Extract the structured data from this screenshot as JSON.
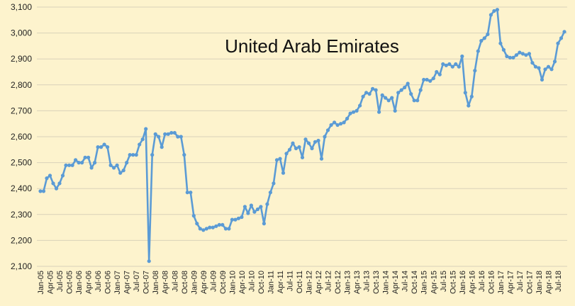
{
  "chart_data": {
    "type": "line",
    "title": "United Arab Emirates",
    "xlabel": "",
    "ylabel": "",
    "ylim": [
      2100,
      3100
    ],
    "yticks": [
      2100,
      2200,
      2300,
      2400,
      2500,
      2600,
      2700,
      2800,
      2900,
      3000,
      3100
    ],
    "ytick_labels": [
      "2,100",
      "2,200",
      "2,300",
      "2,400",
      "2,500",
      "2,600",
      "2,700",
      "2,800",
      "2,900",
      "3,000",
      "3,100"
    ],
    "grid": true,
    "legend": "none",
    "line_color": "#5b9bd5",
    "x_start": "Jan-05",
    "x_tick_labels": [
      "Jan-05",
      "Apr-05",
      "Jul-05",
      "Oct-05",
      "Jan-06",
      "Apr-06",
      "Jul-06",
      "Oct-06",
      "Jan-07",
      "Apr-07",
      "Jul-07",
      "Oct-07",
      "Jan-08",
      "Apr-08",
      "Jul-08",
      "Oct-08",
      "Jan-09",
      "Apr-09",
      "Jul-09",
      "Oct-09",
      "Jan-10",
      "Apr-10",
      "Jul-10",
      "Oct-10",
      "Jan-11",
      "Apr-11",
      "Jul-11",
      "Oct-11",
      "Jan-12",
      "Apr-12",
      "Jul-12",
      "Oct-12",
      "Jan-13",
      "Apr-13",
      "Jul-13",
      "Oct-13",
      "Jan-14",
      "Apr-14",
      "Jul-14",
      "Oct-14",
      "Jan-15",
      "Apr-15",
      "Jul-15",
      "Oct-15",
      "Jan-16",
      "Apr-16",
      "Jul-16",
      "Oct-16",
      "Jan-17",
      "Apr-17",
      "Jul-17",
      "Oct-17",
      "Jan-18",
      "Apr-18",
      "Jul-18"
    ],
    "series": [
      {
        "values": [
          2390,
          2390,
          2440,
          2450,
          2420,
          2400,
          2420,
          2450,
          2490,
          2490,
          2490,
          2510,
          2500,
          2500,
          2520,
          2520,
          2480,
          2500,
          2560,
          2560,
          2570,
          2560,
          2490,
          2480,
          2490,
          2460,
          2470,
          2500,
          2530,
          2530,
          2530,
          2570,
          2590,
          2630,
          2120,
          2530,
          2610,
          2600,
          2560,
          2610,
          2610,
          2615,
          2615,
          2600,
          2600,
          2530,
          2385,
          2385,
          2295,
          2265,
          2245,
          2240,
          2245,
          2250,
          2250,
          2255,
          2260,
          2260,
          2245,
          2245,
          2280,
          2280,
          2285,
          2290,
          2330,
          2305,
          2335,
          2310,
          2320,
          2330,
          2265,
          2340,
          2385,
          2420,
          2510,
          2515,
          2460,
          2535,
          2550,
          2575,
          2555,
          2560,
          2520,
          2590,
          2575,
          2555,
          2580,
          2585,
          2515,
          2600,
          2625,
          2645,
          2655,
          2645,
          2650,
          2655,
          2670,
          2690,
          2695,
          2700,
          2720,
          2755,
          2770,
          2765,
          2785,
          2780,
          2695,
          2760,
          2750,
          2740,
          2750,
          2700,
          2770,
          2780,
          2790,
          2805,
          2765,
          2740,
          2740,
          2780,
          2820,
          2820,
          2815,
          2825,
          2850,
          2840,
          2880,
          2875,
          2880,
          2870,
          2880,
          2870,
          2910,
          2770,
          2720,
          2755,
          2855,
          2930,
          2970,
          2980,
          2995,
          3070,
          3085,
          3090,
          2960,
          2935,
          2910,
          2905,
          2905,
          2915,
          2925,
          2920,
          2915,
          2920,
          2885,
          2870,
          2865,
          2820,
          2860,
          2870,
          2860,
          2890,
          2960,
          2980,
          3005
        ]
      }
    ]
  }
}
